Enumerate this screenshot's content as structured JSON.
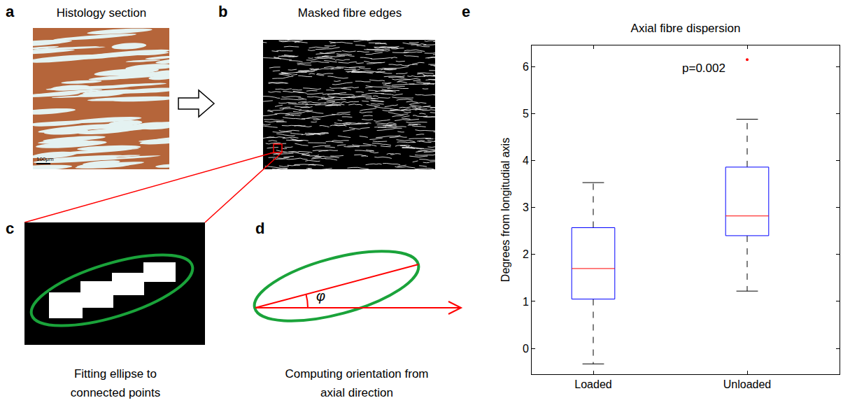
{
  "panels": [
    {
      "letter": "a",
      "title": "Histology section",
      "scale_bar": "100μm"
    },
    {
      "letter": "b",
      "title": "Masked fibre edges"
    },
    {
      "letter": "c",
      "caption": "Fitting ellipse to connected points"
    },
    {
      "letter": "d",
      "caption": "Computing orientation from axial direction",
      "angle_symbol": "φ"
    },
    {
      "letter": "e"
    }
  ],
  "chart_data": {
    "type": "box",
    "title": "Axial fibre dispersion",
    "y_label": "Degrees from longitudial axis",
    "categories": [
      "Loaded",
      "Unloaded"
    ],
    "boxes": [
      {
        "lower_whisker": -0.33,
        "q1": 1.05,
        "median": 1.7,
        "q3": 2.57,
        "upper_whisker": 3.53,
        "outliers": []
      },
      {
        "lower_whisker": 1.22,
        "q1": 2.4,
        "median": 2.82,
        "q3": 3.86,
        "upper_whisker": 4.88,
        "outliers": [
          6.15
        ]
      }
    ],
    "color": "#0000ff",
    "annotations": [
      {
        "text": "p=0.002"
      }
    ],
    "ylim": [
      -0.55,
      6.45
    ],
    "yticks": [
      0,
      1,
      2,
      3,
      4,
      5,
      6
    ],
    "grid": false
  }
}
